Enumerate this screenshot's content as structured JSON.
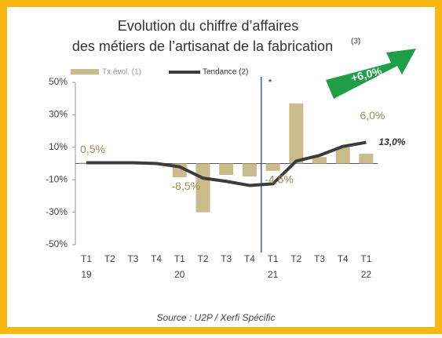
{
  "chart_data": {
    "type": "bar+line",
    "title": [
      "Evolution du chiffre d’affaires",
      "des métiers de l’artisanat de la fabrication"
    ],
    "title_note": "(3)",
    "categories": [
      "T1",
      "T2",
      "T3",
      "T4",
      "T1",
      "T2",
      "T3",
      "T4",
      "T1",
      "T2",
      "T3",
      "T4",
      "T1"
    ],
    "years": [
      "19",
      null,
      null,
      null,
      "20",
      null,
      null,
      null,
      "21",
      null,
      null,
      null,
      "22"
    ],
    "series": [
      {
        "name": "Tx évol. (1)",
        "color": "#c9bb8c",
        "values": [
          0.5,
          0.5,
          0.5,
          0.5,
          -8.5,
          -30,
          -7,
          -8,
          -4.5,
          37,
          4,
          10,
          6
        ],
        "value_labels": [
          "0,5%",
          null,
          null,
          null,
          "-8,5%",
          null,
          null,
          null,
          "-4,5%",
          null,
          null,
          null,
          "6,0%"
        ]
      },
      {
        "name": "Tendance (2)",
        "color": "#3c3c3c",
        "values": [
          0.5,
          0.5,
          0.5,
          0,
          -2,
          -9,
          -11,
          -13.5,
          -12.5,
          1.5,
          5,
          10.5,
          13
        ],
        "value_labels": [
          null,
          null,
          null,
          null,
          null,
          null,
          null,
          null,
          null,
          null,
          null,
          null,
          "13,0%"
        ]
      }
    ],
    "ylim": [
      -50,
      50
    ],
    "yticks": [
      {
        "value": 50,
        "label": "50%"
      },
      {
        "value": 30,
        "label": "30%"
      },
      {
        "value": 10,
        "label": "10%"
      },
      {
        "value": -10,
        "label": "-10%"
      },
      {
        "value": -30,
        "label": "-30%"
      },
      {
        "value": -50,
        "label": "-50%"
      }
    ],
    "marker": "*",
    "arrow_label": "+6,0%",
    "source": "Source : U2P / Xerfi Spécific"
  }
}
